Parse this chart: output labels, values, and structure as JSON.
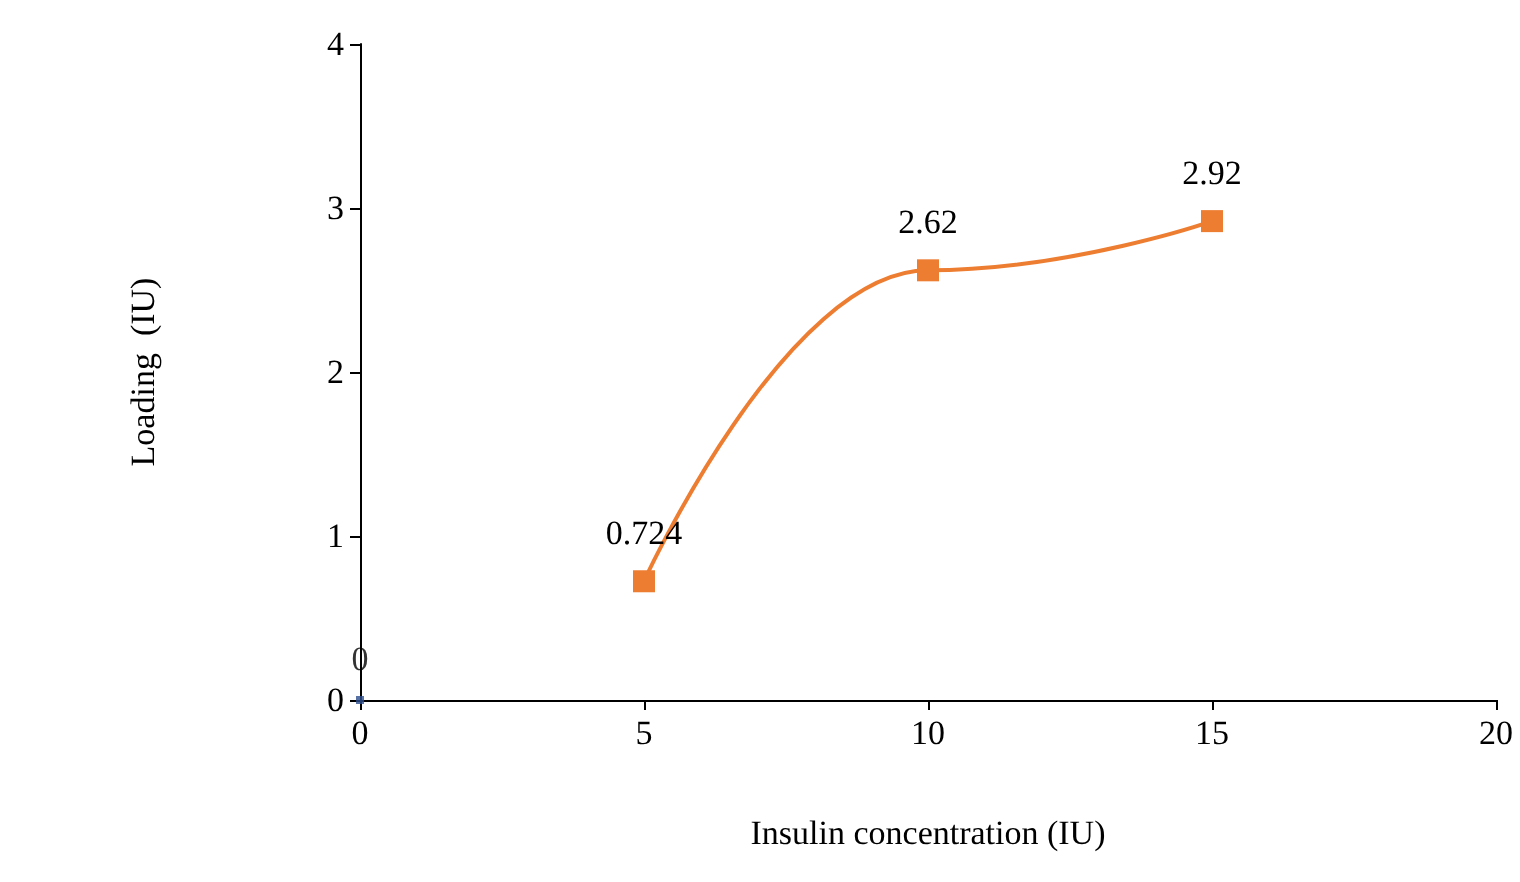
{
  "chart_data": {
    "type": "line",
    "xlabel": "Insulin concentration (IU)",
    "ylabel": "Loading  (IU)",
    "xlim": [
      0,
      20
    ],
    "xticks": [
      0,
      5,
      10,
      15,
      20
    ],
    "ylim": [
      0,
      4
    ],
    "yticks": [
      0,
      1,
      2,
      3,
      4
    ],
    "grid": false,
    "marker": "square",
    "data_labels": true,
    "series": [
      {
        "type": "scatter",
        "color": "#2f4f8f",
        "x": [
          0
        ],
        "values": [
          0
        ]
      },
      {
        "color": "#ed7d31",
        "x": [
          5,
          10,
          15
        ],
        "values": [
          0.724,
          2.62,
          2.92
        ]
      }
    ]
  }
}
